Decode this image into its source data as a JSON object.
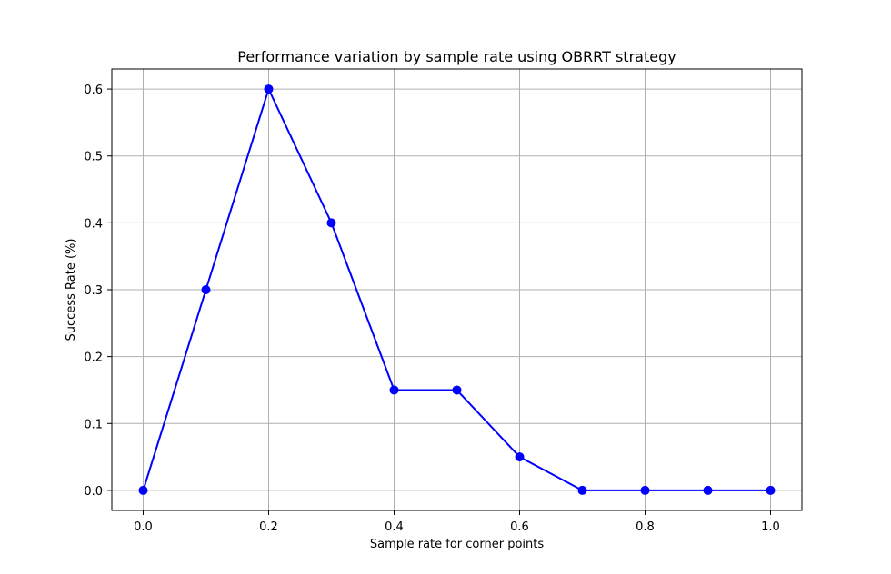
{
  "chart_data": {
    "type": "line",
    "title": "Performance variation by sample rate using OBRRT strategy",
    "xlabel": "Sample rate for corner points",
    "ylabel": "Success Rate (%)",
    "xlim": [
      -0.05,
      1.05
    ],
    "ylim": [
      -0.03,
      0.63
    ],
    "xticks": [
      0.0,
      0.2,
      0.4,
      0.6,
      0.8,
      1.0
    ],
    "yticks": [
      0.0,
      0.1,
      0.2,
      0.3,
      0.4,
      0.5,
      0.6
    ],
    "xtick_labels": [
      "0.0",
      "0.2",
      "0.4",
      "0.6",
      "0.8",
      "1.0"
    ],
    "ytick_labels": [
      "0.0",
      "0.1",
      "0.2",
      "0.3",
      "0.4",
      "0.5",
      "0.6"
    ],
    "grid": true,
    "series": [
      {
        "x": [
          0.0,
          0.1,
          0.2,
          0.3,
          0.4,
          0.5,
          0.6,
          0.7,
          0.8,
          0.9,
          1.0
        ],
        "values": [
          0.0,
          0.3,
          0.6,
          0.4,
          0.15,
          0.15,
          0.05,
          0.0,
          0.0,
          0.0,
          0.0
        ],
        "color": "#0000ff",
        "marker": "circle"
      }
    ],
    "colors": {
      "line": "#0000ff",
      "grid": "#b0b0b0",
      "axes": "#000000",
      "background": "#ffffff"
    }
  }
}
